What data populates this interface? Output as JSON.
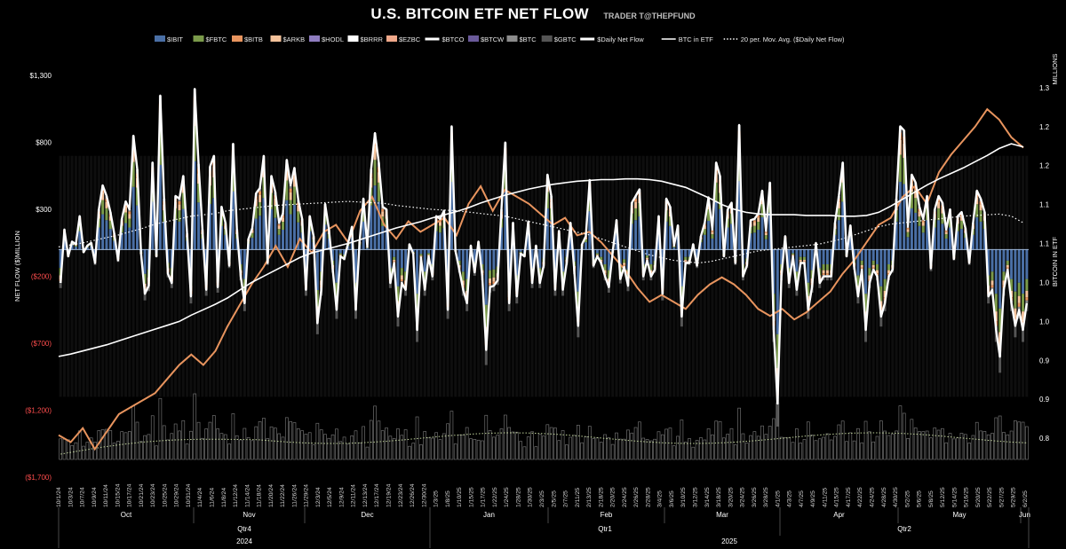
{
  "header": {
    "title": "U.S. BITCOIN ETF NET FLOW",
    "author": "TRADER T@THEPFUND"
  },
  "chart_data": {
    "type": "bar",
    "subtype": "stacked bar with line overlays",
    "title": "U.S. BITCOIN ETF NET FLOW",
    "ylabel_left": "NET FLOW ($)MILLION",
    "ylabel_right": "BITCOIN IN ETF",
    "right_unit_label": "MILLIONS",
    "ylim_left": [
      -1700,
      1500
    ],
    "ylim_right": [
      0.8,
      1.35
    ],
    "yticks_left": [
      "$1,300",
      "$800",
      "$300",
      "($200)",
      "($700)",
      "($1,200)",
      "($1,700)"
    ],
    "yticks_left_values": [
      1300,
      800,
      300,
      -200,
      -700,
      -1200,
      -1700
    ],
    "yticks_right": [
      "1.3",
      "1.2",
      "1.2",
      "1.1",
      "1.1",
      "1.0",
      "1.0",
      "0.9",
      "0.9",
      "0.8"
    ],
    "yticks_right_values": [
      1.3,
      1.25,
      1.2,
      1.15,
      1.1,
      1.05,
      1.0,
      0.95,
      0.9,
      0.85
    ],
    "legend_position": "top",
    "legend": [
      {
        "name": "$IBIT",
        "color": "#4a6fa5",
        "kind": "bar"
      },
      {
        "name": "$FBTC",
        "color": "#7a9a4a",
        "kind": "bar"
      },
      {
        "name": "$BITB",
        "color": "#e8945e",
        "kind": "bar"
      },
      {
        "name": "$ARKB",
        "color": "#f4c29a",
        "kind": "bar"
      },
      {
        "name": "$HODL",
        "color": "#8f7dc0",
        "kind": "bar"
      },
      {
        "name": "$BRRR",
        "color": "#ffffff",
        "kind": "bar"
      },
      {
        "name": "$EZBC",
        "color": "#f0a88a",
        "kind": "bar"
      },
      {
        "name": "$BTCO",
        "color": "#ffffff",
        "kind": "line"
      },
      {
        "name": "$BTCW",
        "color": "#6a5a9a",
        "kind": "bar"
      },
      {
        "name": "$BTC",
        "color": "#8c8c8c",
        "kind": "bar"
      },
      {
        "name": "$GBTC",
        "color": "#555555",
        "kind": "bar"
      },
      {
        "name": "$Daily Net Flow",
        "color": "#ffffff",
        "kind": "line"
      },
      {
        "name": "BTC in ETF",
        "color": "#ffffff",
        "kind": "thinline"
      },
      {
        "name": "20 per. Mov. Avg. ($Daily Net Flow)",
        "color": "#ffffff",
        "kind": "dotted"
      }
    ],
    "x_tick_labels": [
      "10/1/24",
      "10/3/24",
      "10/7/24",
      "10/9/24",
      "10/11/24",
      "10/15/24",
      "10/17/24",
      "10/21/24",
      "10/23/24",
      "10/25/24",
      "10/29/24",
      "10/31/24",
      "11/4/24",
      "11/6/24",
      "11/8/24",
      "11/12/24",
      "11/14/24",
      "11/18/24",
      "11/20/24",
      "11/22/24",
      "11/26/24",
      "11/29/24",
      "12/3/24",
      "12/5/24",
      "12/9/24",
      "12/11/24",
      "12/13/24",
      "12/17/24",
      "12/19/24",
      "12/23/24",
      "12/26/24",
      "12/30/24",
      "1/3/25",
      "1/8/25",
      "1/10/25",
      "1/15/25",
      "1/17/25",
      "1/22/25",
      "1/24/25",
      "1/28/25",
      "1/30/25",
      "2/3/25",
      "2/5/25",
      "2/7/25",
      "2/11/25",
      "2/13/25",
      "2/18/25",
      "2/20/25",
      "2/24/25",
      "2/26/25",
      "2/28/25",
      "3/4/25",
      "3/6/25",
      "3/10/25",
      "3/12/25",
      "3/14/25",
      "3/18/25",
      "3/20/25",
      "3/24/25",
      "3/26/25",
      "3/28/25",
      "4/1/25",
      "4/3/25",
      "4/7/25",
      "4/9/25",
      "4/11/25",
      "4/15/25",
      "4/17/25",
      "4/22/25",
      "4/24/25",
      "4/28/25",
      "4/30/25",
      "5/2/25",
      "5/6/25",
      "5/8/25",
      "5/12/25",
      "5/14/25",
      "5/16/25",
      "5/20/25",
      "5/22/25",
      "5/27/25",
      "5/29/25",
      "6/2/25"
    ],
    "months": [
      "Oct",
      "Nov",
      "Dec",
      "Jan",
      "Feb",
      "Mar",
      "Apr",
      "May",
      "Jun"
    ],
    "quarters": [
      "Qtr4",
      "Qtr1",
      "Qtr2"
    ],
    "years": [
      "2024",
      "2025"
    ],
    "daily_net_flow": [
      -250,
      150,
      -50,
      60,
      40,
      250,
      -20,
      30,
      50,
      -100,
      300,
      480,
      400,
      280,
      120,
      -80,
      230,
      360,
      300,
      850,
      600,
      -30,
      -330,
      -270,
      650,
      -50,
      1150,
      380,
      -180,
      -250,
      400,
      380,
      550,
      120,
      -350,
      1200,
      640,
      150,
      -300,
      620,
      700,
      -280,
      320,
      200,
      -120,
      790,
      150,
      -200,
      -400,
      80,
      160,
      420,
      460,
      700,
      -100,
      550,
      430,
      200,
      270,
      670,
      480,
      610,
      370,
      230,
      -300,
      250,
      100,
      -550,
      -300,
      340,
      150,
      -150,
      -450,
      -50,
      -70,
      50,
      170,
      -450,
      60,
      380,
      20,
      600,
      870,
      650,
      320,
      300,
      -250,
      -100,
      -500,
      -250,
      -300,
      40,
      -30,
      -600,
      -60,
      -300,
      -50,
      -200,
      250,
      230,
      290,
      -450,
      920,
      -10,
      -150,
      -300,
      -400,
      30,
      -170,
      60,
      -200,
      -750,
      -280,
      -270,
      -230,
      300,
      800,
      -400,
      200,
      -350,
      -30,
      -50,
      210,
      -250,
      30,
      -250,
      -120,
      560,
      400,
      -300,
      140,
      -300,
      -100,
      200,
      -160,
      -570,
      40,
      100,
      520,
      -120,
      -50,
      -100,
      -200,
      -280,
      -20,
      220,
      -220,
      -130,
      -270,
      350,
      400,
      450,
      -200,
      -80,
      -200,
      -150,
      250,
      -330,
      380,
      320,
      30,
      180,
      -500,
      -100,
      -100,
      40,
      -120,
      100,
      200,
      390,
      150,
      650,
      550,
      -50,
      300,
      350,
      -100,
      930,
      -200,
      -120,
      220,
      230,
      270,
      440,
      140,
      500,
      -600,
      -1150,
      -200,
      100,
      -250,
      -50,
      -300,
      -100,
      -100,
      -450,
      -280,
      50,
      -250,
      -200,
      -200,
      -200,
      200,
      400,
      650,
      -50,
      180,
      -130,
      -350,
      -150,
      -600,
      -250,
      -150,
      -200,
      -500,
      -400,
      -200,
      -150,
      380,
      920,
      890,
      170,
      560,
      500,
      320,
      230,
      400,
      -140,
      300,
      400,
      350,
      150,
      300,
      -70,
      250,
      280,
      160,
      -100,
      200,
      440,
      380,
      280,
      -350,
      -300,
      -600,
      -800,
      -300,
      -150,
      -400,
      -570,
      -450,
      -600,
      -400
    ],
    "btc_in_etf_millions": [
      0.955,
      0.958,
      0.962,
      0.966,
      0.97,
      0.975,
      0.98,
      0.985,
      0.99,
      0.995,
      1.0,
      1.008,
      1.015,
      1.022,
      1.03,
      1.04,
      1.05,
      1.058,
      1.066,
      1.074,
      1.082,
      1.088,
      1.092,
      1.096,
      1.1,
      1.105,
      1.11,
      1.115,
      1.12,
      1.124,
      1.128,
      1.133,
      1.137,
      1.141,
      1.146,
      1.152,
      1.157,
      1.162,
      1.166,
      1.17,
      1.173,
      1.176,
      1.178,
      1.18,
      1.181,
      1.182,
      1.182,
      1.183,
      1.183,
      1.182,
      1.18,
      1.176,
      1.172,
      1.165,
      1.158,
      1.15,
      1.144,
      1.14,
      1.138,
      1.137,
      1.137,
      1.137,
      1.136,
      1.136,
      1.136,
      1.135,
      1.135,
      1.136,
      1.14,
      1.148,
      1.157,
      1.166,
      1.175,
      1.183,
      1.19,
      1.197,
      1.205,
      1.213,
      1.222,
      1.228,
      1.224
    ],
    "bitcoin_price_line_relative": [
      0.62,
      0.6,
      0.64,
      0.58,
      0.63,
      0.68,
      0.7,
      0.72,
      0.74,
      0.78,
      0.82,
      0.85,
      0.82,
      0.86,
      0.93,
      0.99,
      1.05,
      1.1,
      1.16,
      1.1,
      1.18,
      1.14,
      1.2,
      1.22,
      1.17,
      1.26,
      1.3,
      1.22,
      1.18,
      1.23,
      1.2,
      1.22,
      1.24,
      1.19,
      1.28,
      1.33,
      1.26,
      1.32,
      1.3,
      1.28,
      1.25,
      1.22,
      1.24,
      1.19,
      1.2,
      1.17,
      1.13,
      1.09,
      1.04,
      1.0,
      1.02,
      1.0,
      0.98,
      1.02,
      1.05,
      1.07,
      1.05,
      1.02,
      0.98,
      0.96,
      0.98,
      0.95,
      0.97,
      1.0,
      1.03,
      1.08,
      1.12,
      1.17,
      1.22,
      1.24,
      1.3,
      1.33,
      1.28,
      1.37,
      1.42,
      1.46,
      1.5,
      1.55,
      1.52,
      1.47,
      1.44
    ],
    "moving_avg_20": [
      20,
      35,
      50,
      70,
      90,
      110,
      135,
      160,
      190,
      210,
      230,
      250,
      260,
      270,
      290,
      300,
      310,
      320,
      330,
      335,
      340,
      345,
      350,
      355,
      360,
      355,
      350,
      345,
      330,
      320,
      310,
      300,
      295,
      290,
      280,
      270,
      260,
      250,
      230,
      210,
      190,
      170,
      150,
      130,
      110,
      80,
      50,
      20,
      -10,
      -40,
      -60,
      -80,
      -90,
      -100,
      -90,
      -70,
      -50,
      -30,
      -10,
      0,
      10,
      20,
      30,
      40,
      60,
      80,
      110,
      140,
      170,
      190,
      200,
      210,
      220,
      230,
      240,
      250,
      255,
      260,
      265,
      250,
      200
    ]
  }
}
